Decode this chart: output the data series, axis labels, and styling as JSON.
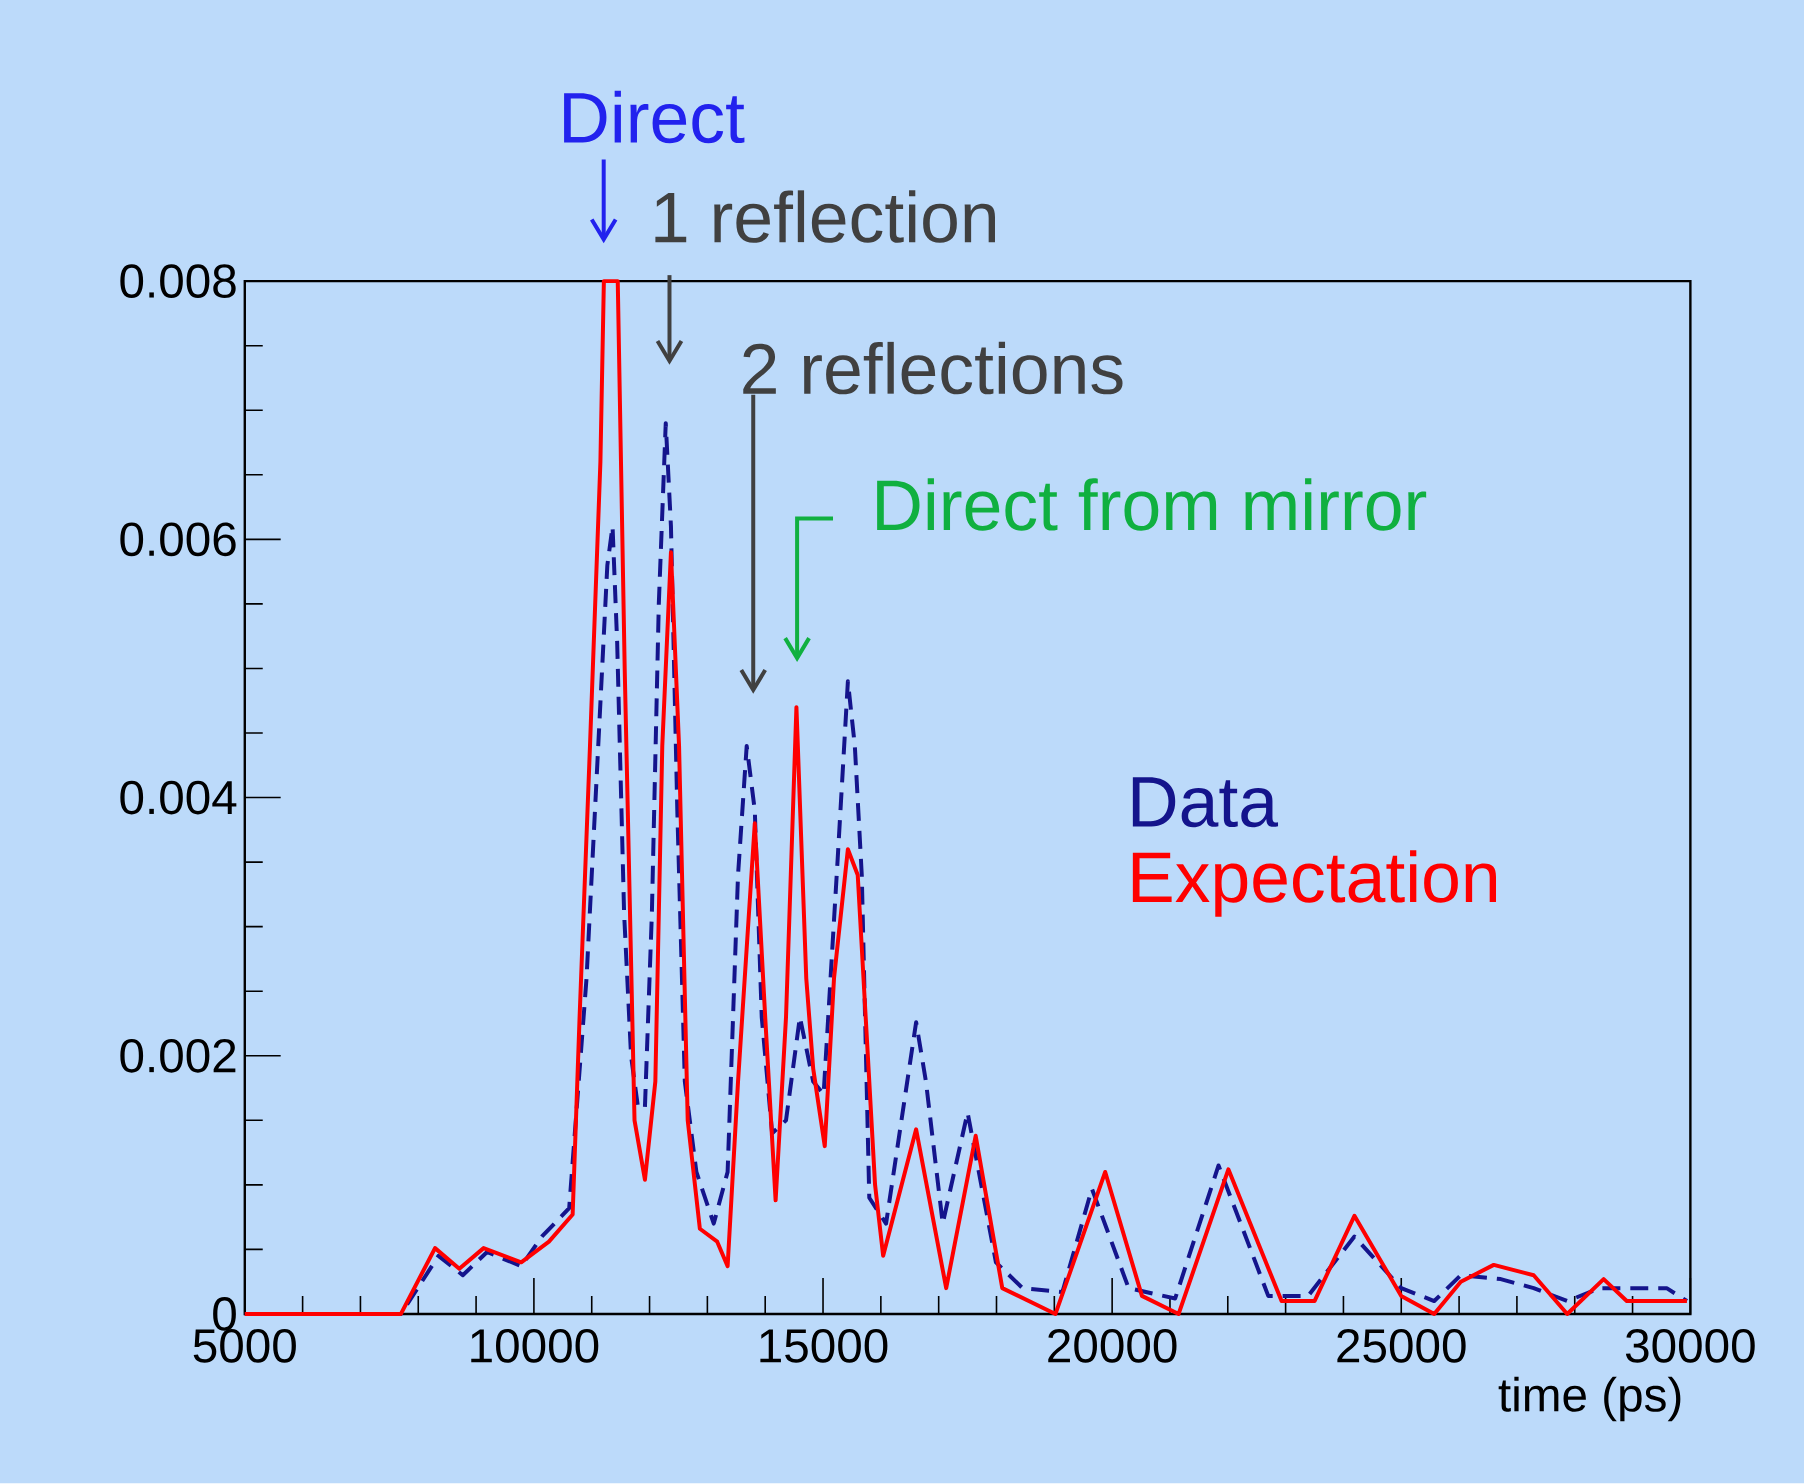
{
  "chart_data": {
    "type": "line",
    "xlabel": "time (ps)",
    "xlim": [
      5000,
      30000
    ],
    "ylim": [
      0,
      0.008
    ],
    "xticks": [
      5000,
      10000,
      15000,
      20000,
      25000,
      30000
    ],
    "yticks": [
      {
        "value": 0,
        "label": "0"
      },
      0.002,
      0.004,
      0.006,
      0.008
    ],
    "legend": "right",
    "grid": false,
    "marker": "none",
    "annotations": [
      "Direct",
      "1 reflection",
      "2 reflections",
      "Direct from mirror"
    ],
    "series": [
      {
        "name": "Data",
        "color": "#14148c",
        "line_style": "dashed",
        "x": [
          5000,
          7700,
          8350,
          8770,
          9190,
          9780,
          10140,
          10610,
          10910,
          11090,
          11270,
          11360,
          11440,
          11560,
          11680,
          11800,
          11920,
          12040,
          12160,
          12280,
          12370,
          12480,
          12610,
          12810,
          13110,
          13350,
          13530,
          13680,
          13820,
          13940,
          14120,
          14360,
          14600,
          14830,
          15010,
          15250,
          15430,
          15550,
          15670,
          15800,
          16090,
          16610,
          16780,
          17070,
          17500,
          17990,
          18450,
          19140,
          19650,
          20285,
          21090,
          21840,
          22700,
          23390,
          24190,
          25000,
          25570,
          26030,
          26720,
          27290,
          27870,
          28440,
          29590,
          29940
        ],
        "values": [
          0,
          0,
          0.00045,
          0.0003,
          0.00048,
          0.00037,
          0.0006,
          0.00082,
          0.0026,
          0.0042,
          0.0058,
          0.0061,
          0.0052,
          0.0031,
          0.002,
          0.0016,
          0.0016,
          0.0031,
          0.0055,
          0.0069,
          0.0061,
          0.0039,
          0.0018,
          0.0011,
          0.0007,
          0.0011,
          0.0034,
          0.0044,
          0.0039,
          0.0023,
          0.0014,
          0.0015,
          0.0023,
          0.0018,
          0.0017,
          0.0035,
          0.0049,
          0.0044,
          0.0034,
          0.0009,
          0.0007,
          0.00226,
          0.0018,
          0.0007,
          0.00156,
          0.0004,
          0.0002,
          0.00017,
          0.00097,
          0.0002,
          0.00012,
          0.00115,
          0.00014,
          0.00014,
          0.0006,
          0.0002,
          0.0001,
          0.0003,
          0.00027,
          0.0002,
          0.0001,
          0.0002,
          0.0002,
          0.0001
        ]
      },
      {
        "name": "Expectation",
        "color": "#ff0000",
        "line_style": "solid",
        "x": [
          5000,
          7700,
          8290,
          8710,
          9130,
          9780,
          10260,
          10670,
          10790,
          10970,
          11150,
          11210,
          11450,
          11570,
          11740,
          11920,
          12100,
          12220,
          12370,
          12510,
          12660,
          12870,
          13170,
          13350,
          13530,
          13820,
          14000,
          14180,
          14360,
          14540,
          14710,
          14830,
          15030,
          15190,
          15430,
          15600,
          15900,
          16040,
          16610,
          17130,
          17640,
          18100,
          19020,
          19880,
          20515,
          21150,
          22010,
          22930,
          23500,
          24190,
          25000,
          25570,
          26030,
          26600,
          27290,
          27870,
          28500,
          28900,
          29940
        ],
        "values": [
          0,
          0,
          0.00051,
          0.00035,
          0.00051,
          0.0004,
          0.00056,
          0.00077,
          0.0023,
          0.0044,
          0.0066,
          0.008,
          0.008,
          0.005,
          0.0015,
          0.00104,
          0.0018,
          0.0044,
          0.0059,
          0.0044,
          0.0015,
          0.00066,
          0.00056,
          0.00037,
          0.0018,
          0.0038,
          0.0023,
          0.00088,
          0.0023,
          0.0047,
          0.0026,
          0.0019,
          0.0013,
          0.0026,
          0.0036,
          0.0034,
          0.001,
          0.00045,
          0.00143,
          0.0002,
          0.00138,
          0.0002,
          0,
          0.0011,
          0.00014,
          0,
          0.00112,
          0.0001,
          0.0001,
          0.00076,
          0.00014,
          0,
          0.00025,
          0.00038,
          0.0003,
          0,
          0.00027,
          0.0001,
          0.0001
        ]
      }
    ]
  }
}
